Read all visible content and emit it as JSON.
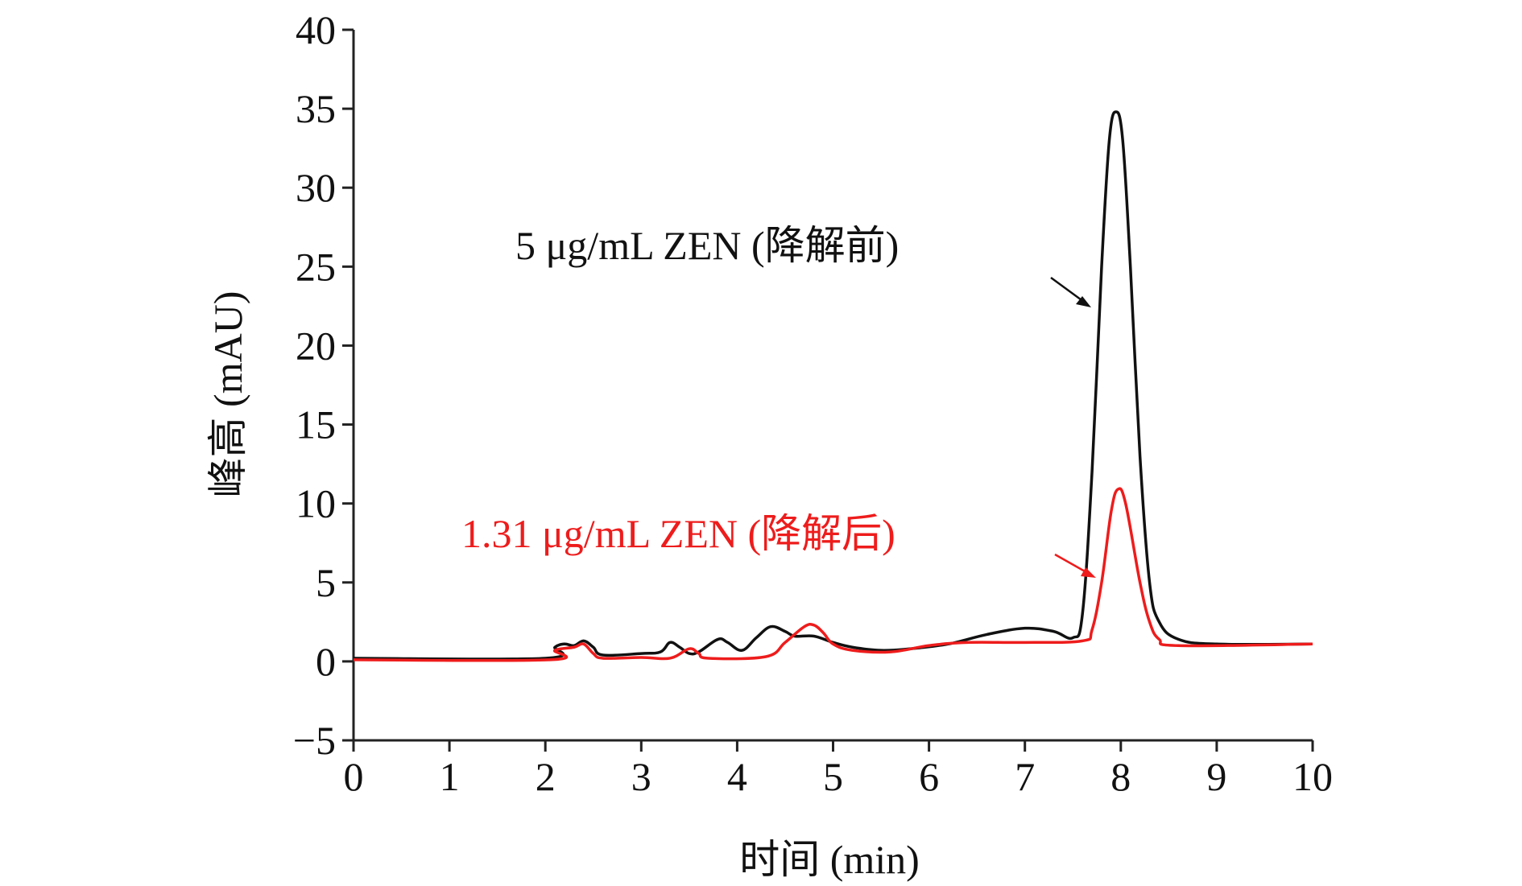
{
  "chart_data": {
    "type": "line",
    "title": "",
    "xlabel": "时间 (min)",
    "ylabel": "峰高 (mAU)",
    "xlim": [
      0,
      10
    ],
    "ylim": [
      -5,
      40
    ],
    "xticks": [
      "0",
      "1",
      "2",
      "3",
      "4",
      "5",
      "6",
      "7",
      "8",
      "9",
      "10"
    ],
    "yticks": [
      "−5",
      "0",
      "5",
      "10",
      "15",
      "20",
      "25",
      "30",
      "35",
      "40"
    ],
    "grid": false,
    "series": [
      {
        "name": "5 μg/mL ZEN (降解前)",
        "color": "#111111",
        "x": [
          0,
          2.0,
          2.1,
          2.2,
          2.3,
          2.4,
          2.5,
          2.6,
          3.0,
          3.2,
          3.3,
          3.4,
          3.5,
          3.6,
          3.8,
          3.9,
          4.05,
          4.2,
          4.35,
          4.5,
          4.6,
          4.8,
          5.0,
          5.2,
          5.5,
          5.8,
          6.2,
          6.6,
          7.0,
          7.3,
          7.5,
          7.6,
          7.7,
          7.8,
          7.88,
          7.95,
          8.02,
          8.1,
          8.2,
          8.3,
          8.4,
          8.6,
          9.0,
          10
        ],
        "y": [
          0.2,
          0.2,
          0.9,
          1.1,
          1.0,
          1.3,
          0.9,
          0.4,
          0.5,
          0.6,
          1.2,
          0.9,
          0.5,
          0.6,
          1.4,
          1.2,
          0.7,
          1.5,
          2.2,
          1.9,
          1.6,
          1.6,
          1.2,
          0.9,
          0.7,
          0.8,
          1.1,
          1.7,
          2.1,
          1.9,
          1.5,
          3.0,
          12,
          25,
          33,
          34.8,
          33,
          25,
          13,
          5,
          2.5,
          1.4,
          1.1,
          1.1
        ]
      },
      {
        "name": "1.31 μg/mL ZEN (降解后)",
        "color": "#ee1c1c",
        "x": [
          0,
          2.05,
          2.1,
          2.3,
          2.4,
          2.5,
          2.6,
          3.0,
          3.3,
          3.5,
          3.6,
          3.7,
          4.3,
          4.5,
          4.7,
          4.8,
          4.9,
          5.0,
          5.2,
          5.6,
          6.0,
          6.4,
          7.0,
          7.6,
          7.7,
          7.8,
          7.9,
          7.97,
          8.05,
          8.2,
          8.3,
          8.4,
          8.6,
          10
        ],
        "y": [
          0.1,
          0.1,
          0.7,
          0.9,
          1.1,
          0.5,
          0.2,
          0.25,
          0.2,
          0.8,
          0.5,
          0.2,
          0.3,
          1.2,
          2.2,
          2.3,
          1.8,
          1.1,
          0.7,
          0.6,
          1.0,
          1.2,
          1.2,
          1.3,
          2.0,
          5.0,
          9.5,
          10.9,
          10.0,
          5.0,
          2.5,
          1.4,
          1.0,
          1.1
        ]
      }
    ],
    "annotations": [
      {
        "text": "5 μg/mL ZEN (降解前)",
        "color": "#111111",
        "points_to": "8.0 min peak (~35 mAU)"
      },
      {
        "text": "1.31 μg/mL ZEN (降解后)",
        "color": "#ee1c1c",
        "points_to": "8.0 min peak (~11 mAU)"
      }
    ]
  }
}
